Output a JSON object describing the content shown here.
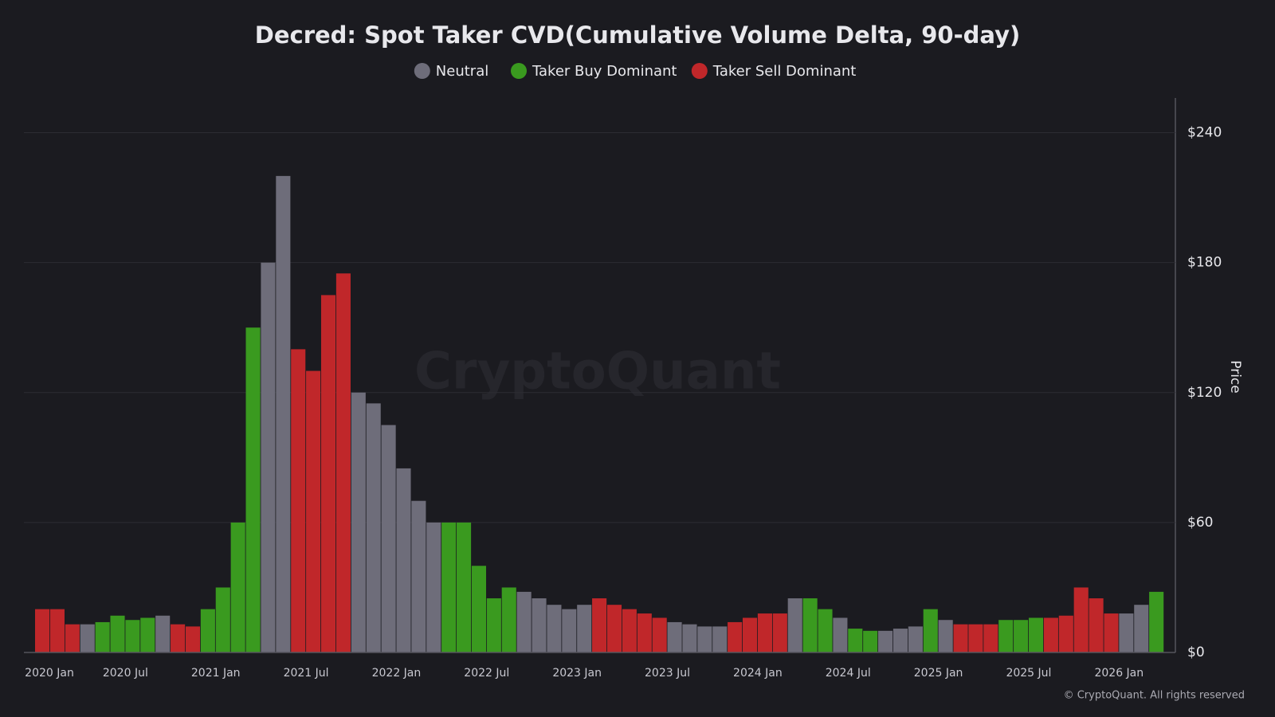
{
  "chart_data": {
    "type": "bar",
    "title": "Decred: Spot Taker CVD(Cumulative Volume Delta, 90-day)",
    "y_axis_label": "Price",
    "watermark": "CryptoQuant",
    "footer": "© CryptoQuant. All rights reserved",
    "categories": [
      "2020 Jan",
      null,
      null,
      null,
      null,
      null,
      "2020 Jul",
      null,
      null,
      null,
      null,
      null,
      "2021 Jan",
      null,
      null,
      null,
      null,
      null,
      "2021 Jul",
      null,
      null,
      null,
      null,
      null,
      "2022 Jan",
      null,
      null,
      null,
      null,
      null,
      "2022 Jul",
      null,
      null,
      null,
      null,
      null,
      "2023 Jan",
      null,
      null,
      null,
      null,
      null,
      "2023 Jul",
      null,
      null,
      null,
      null,
      null,
      "2024 Jan",
      null,
      null,
      null,
      null,
      null,
      "2024 Jul",
      null,
      null,
      null,
      null,
      null,
      "2025 Jan",
      null,
      null,
      null,
      null,
      null,
      "2025 Jul",
      null,
      null,
      null,
      null,
      null,
      "2026 Jan",
      null,
      null
    ],
    "series": [
      {
        "name": "Neutral",
        "color": "#6e6d7a",
        "values": [
          null,
          null,
          null,
          13,
          null,
          null,
          null,
          null,
          17,
          null,
          null,
          null,
          null,
          null,
          null,
          180,
          220,
          null,
          null,
          null,
          null,
          120,
          115,
          105,
          85,
          70,
          60,
          null,
          null,
          null,
          null,
          null,
          28,
          25,
          22,
          20,
          22,
          null,
          null,
          null,
          null,
          null,
          14,
          13,
          12,
          12,
          null,
          null,
          null,
          null,
          25,
          null,
          null,
          16,
          null,
          null,
          10,
          11,
          12,
          null,
          15,
          null,
          null,
          null,
          null,
          null,
          null,
          null,
          null,
          null,
          null,
          null,
          18,
          22,
          null
        ]
      },
      {
        "name": "Taker Buy Dominant",
        "color": "#3a9a1f",
        "values": [
          null,
          null,
          null,
          null,
          14,
          17,
          15,
          16,
          null,
          null,
          null,
          20,
          30,
          60,
          150,
          null,
          null,
          null,
          null,
          null,
          null,
          null,
          null,
          null,
          null,
          null,
          null,
          60,
          60,
          40,
          25,
          30,
          null,
          null,
          null,
          null,
          null,
          null,
          null,
          null,
          null,
          null,
          null,
          null,
          null,
          null,
          null,
          null,
          null,
          null,
          null,
          25,
          20,
          null,
          11,
          10,
          null,
          null,
          null,
          20,
          null,
          null,
          null,
          null,
          15,
          15,
          16,
          null,
          null,
          null,
          null,
          null,
          null,
          null,
          28
        ]
      },
      {
        "name": "Taker Sell Dominant",
        "color": "#c0272a",
        "values": [
          20,
          20,
          13,
          null,
          null,
          null,
          null,
          null,
          null,
          13,
          12,
          null,
          null,
          null,
          null,
          null,
          null,
          140,
          130,
          165,
          175,
          null,
          null,
          null,
          null,
          null,
          null,
          null,
          null,
          null,
          null,
          null,
          null,
          null,
          null,
          null,
          null,
          25,
          22,
          20,
          18,
          16,
          null,
          null,
          null,
          null,
          14,
          16,
          18,
          18,
          null,
          null,
          null,
          null,
          null,
          null,
          null,
          null,
          null,
          null,
          null,
          13,
          13,
          13,
          null,
          null,
          null,
          16,
          17,
          30,
          25,
          18,
          null,
          null,
          null
        ]
      }
    ],
    "ylim": [
      0,
      256
    ],
    "yticks": [
      {
        "value": 0,
        "label": "$0"
      },
      {
        "value": 60,
        "label": "$60"
      },
      {
        "value": 120,
        "label": "$120"
      },
      {
        "value": 180,
        "label": "$180"
      },
      {
        "value": 240,
        "label": "$240"
      }
    ],
    "grid": true,
    "legend": "top"
  }
}
